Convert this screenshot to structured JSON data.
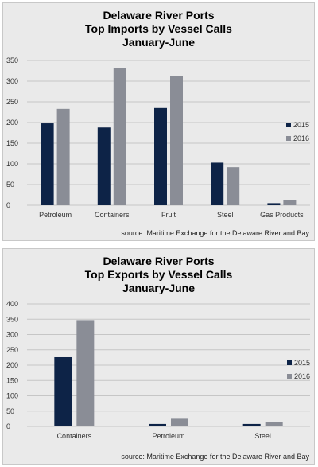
{
  "colors": {
    "series_2015": "#0d2347",
    "series_2016": "#8a8d96",
    "grid": "#c6c6c6",
    "panel_bg": "#eaeaea"
  },
  "chart_data": [
    {
      "type": "bar",
      "title_lines": [
        "Delaware River Ports",
        "Top Imports by Vessel Calls",
        "January-June"
      ],
      "categories": [
        "Petroleum",
        "Containers",
        "Fruit",
        "Steel",
        "Gas Products"
      ],
      "series": [
        {
          "name": "2015",
          "values": [
            198,
            188,
            235,
            103,
            5
          ]
        },
        {
          "name": "2016",
          "values": [
            233,
            332,
            313,
            92,
            12
          ]
        }
      ],
      "yticks": [
        0,
        50,
        100,
        150,
        200,
        250,
        300,
        350
      ],
      "ylim": [
        0,
        350
      ],
      "grid": true,
      "legend": "right",
      "source": "source:  Maritime Exchange for the Delaware River and Bay"
    },
    {
      "type": "bar",
      "title_lines": [
        "Delaware River Ports",
        "Top Exports by Vessel Calls",
        "January-June"
      ],
      "categories": [
        "Containers",
        "Petroleum",
        "Steel"
      ],
      "series": [
        {
          "name": "2015",
          "values": [
            226,
            8,
            8
          ]
        },
        {
          "name": "2016",
          "values": [
            347,
            25,
            15
          ]
        }
      ],
      "yticks": [
        0,
        50,
        100,
        150,
        200,
        250,
        300,
        350,
        400
      ],
      "ylim": [
        0,
        400
      ],
      "grid": true,
      "legend": "right",
      "source": "source:  Maritime Exchange for the Delaware River and Bay"
    }
  ]
}
